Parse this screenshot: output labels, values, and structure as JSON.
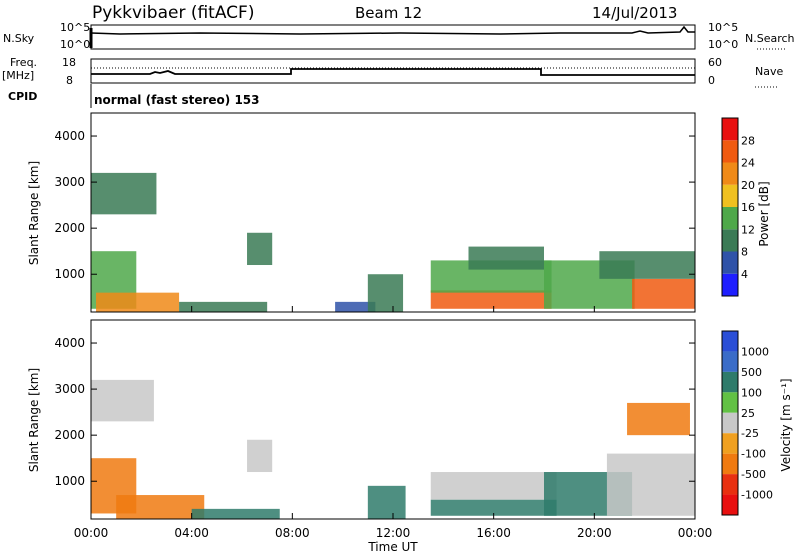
{
  "header": {
    "station": "Pykkvibaer (fitACF)",
    "beam": "Beam 12",
    "date": "14/Jul/2013"
  },
  "top_panels": {
    "nsky_label": "N.Sky",
    "nsearch_label": "N.Search",
    "noise_ticks": [
      "10^5",
      "10^0"
    ],
    "freq_label_1": "Freq.",
    "freq_label_2": "[MHz]",
    "freq_ticks": [
      "18",
      "8"
    ],
    "nave_label": "Nave",
    "nave_ticks": [
      "60",
      "0"
    ],
    "cpid_label": "CPID",
    "cpid_text": "normal (fast stereo) 153"
  },
  "colors": {
    "power_scale": [
      "#1f1fff",
      "#2f52a8",
      "#3a7a55",
      "#4fa84a",
      "#f0c020",
      "#f08a18",
      "#f05a10",
      "#e81010"
    ],
    "velocity_scale": [
      "#2a4ed6",
      "#3a6cc8",
      "#2f7b6b",
      "#62c144",
      "#c8c8c8",
      "#f0a020",
      "#f07a10",
      "#e83010",
      "#e81010"
    ]
  },
  "chart_data": [
    {
      "type": "heatmap",
      "name": "power",
      "ylabel": "Slant Range [km]",
      "yticks": [
        "1000",
        "2000",
        "3000",
        "4000"
      ],
      "ylim": [
        180,
        4500
      ],
      "xlim": [
        0,
        24
      ],
      "colorbar_label": "Power [dB]",
      "colorbar_ticks": [
        "4",
        "8",
        "12",
        "16",
        "20",
        "24",
        "28"
      ],
      "colorbar_range": [
        0,
        32
      ],
      "regions": [
        {
          "x": [
            0.0,
            2.6
          ],
          "y": [
            2300,
            3200
          ],
          "value": 10
        },
        {
          "x": [
            0.0,
            1.8
          ],
          "y": [
            250,
            1500
          ],
          "value": 14
        },
        {
          "x": [
            0.2,
            3.5
          ],
          "y": [
            180,
            600
          ],
          "value": 22
        },
        {
          "x": [
            3.5,
            7.0
          ],
          "y": [
            180,
            400
          ],
          "value": 8
        },
        {
          "x": [
            6.2,
            7.2
          ],
          "y": [
            1200,
            1900
          ],
          "value": 8
        },
        {
          "x": [
            9.7,
            11.3
          ],
          "y": [
            180,
            400
          ],
          "value": 6
        },
        {
          "x": [
            11.0,
            12.4
          ],
          "y": [
            180,
            1000
          ],
          "value": 8
        },
        {
          "x": [
            13.5,
            18.3
          ],
          "y": [
            250,
            650
          ],
          "value": 24
        },
        {
          "x": [
            13.5,
            18.3
          ],
          "y": [
            600,
            1300
          ],
          "value": 14
        },
        {
          "x": [
            15.0,
            18.0
          ],
          "y": [
            1100,
            1600
          ],
          "value": 8
        },
        {
          "x": [
            18.0,
            21.6
          ],
          "y": [
            250,
            1300
          ],
          "value": 14
        },
        {
          "x": [
            21.5,
            24.0
          ],
          "y": [
            250,
            900
          ],
          "value": 26
        },
        {
          "x": [
            20.2,
            24.0
          ],
          "y": [
            900,
            1500
          ],
          "value": 8
        }
      ]
    },
    {
      "type": "heatmap",
      "name": "velocity",
      "ylabel": "Slant Range [km]",
      "yticks": [
        "1000",
        "2000",
        "3000",
        "4000"
      ],
      "ylim": [
        180,
        4500
      ],
      "xlim": [
        0,
        24
      ],
      "xlabel": "Time UT",
      "xticks": [
        "00:00",
        "04:00",
        "08:00",
        "12:00",
        "16:00",
        "20:00",
        "00:00"
      ],
      "colorbar_label": "Velocity [m s⁻¹]",
      "colorbar_ticks": [
        "1000",
        "500",
        "100",
        "25",
        "-25",
        "-100",
        "-500",
        "-1000"
      ],
      "regions": [
        {
          "x": [
            0.0,
            2.5
          ],
          "y": [
            2300,
            3200
          ],
          "value": 0
        },
        {
          "x": [
            0.0,
            1.8
          ],
          "y": [
            300,
            1500
          ],
          "value": -300
        },
        {
          "x": [
            1.0,
            4.5
          ],
          "y": [
            180,
            700
          ],
          "value": -150
        },
        {
          "x": [
            4.0,
            7.5
          ],
          "y": [
            180,
            400
          ],
          "value": 60
        },
        {
          "x": [
            6.2,
            7.2
          ],
          "y": [
            1200,
            1900
          ],
          "value": 0
        },
        {
          "x": [
            11.0,
            12.5
          ],
          "y": [
            180,
            900
          ],
          "value": 60
        },
        {
          "x": [
            13.5,
            18.5
          ],
          "y": [
            250,
            600
          ],
          "value": 200
        },
        {
          "x": [
            13.5,
            18.5
          ],
          "y": [
            600,
            1200
          ],
          "value": 0
        },
        {
          "x": [
            18.0,
            21.5
          ],
          "y": [
            250,
            1200
          ],
          "value": 60
        },
        {
          "x": [
            20.5,
            24.0
          ],
          "y": [
            250,
            1600
          ],
          "value": 0
        },
        {
          "x": [
            21.3,
            23.8
          ],
          "y": [
            2000,
            2700
          ],
          "value": -300
        }
      ]
    }
  ]
}
